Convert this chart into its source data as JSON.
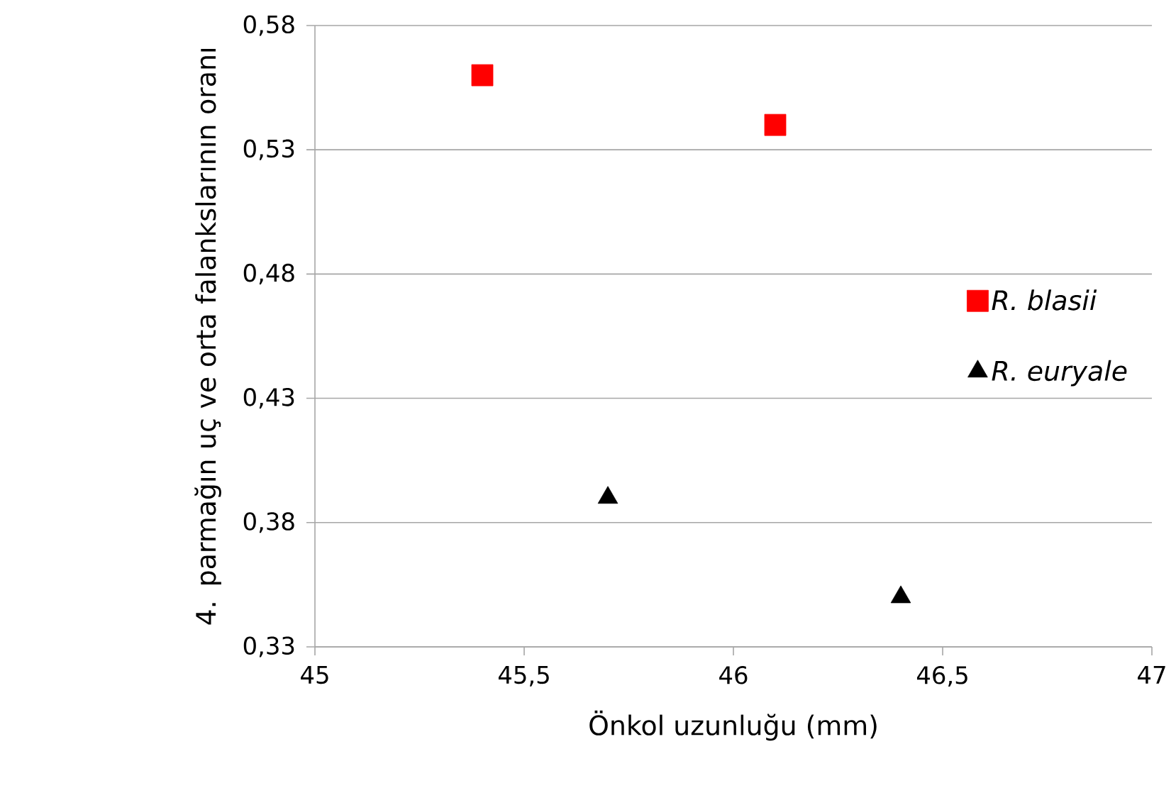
{
  "chart_data": {
    "type": "scatter",
    "xlabel": "Önkol uzunluğu (mm)",
    "ylabel": "4. parmağın uç ve orta falankslarının oranı",
    "series": [
      {
        "name": "R. blasii",
        "color": "#ff0000",
        "marker": "square",
        "x": [
          45.4,
          46.1
        ],
        "values": [
          0.56,
          0.54
        ]
      },
      {
        "name": "R. euryale",
        "color": "#000000",
        "marker": "triangle",
        "x": [
          45.7,
          46.4
        ],
        "values": [
          0.39,
          0.35
        ]
      }
    ],
    "xlim": [
      45,
      47
    ],
    "ylim": [
      0.33,
      0.58
    ],
    "xticks": [
      45,
      {
        "value": 45.5,
        "label": "45,5"
      },
      46,
      {
        "value": 46.5,
        "label": "46,5"
      },
      47
    ],
    "yticks": [
      {
        "value": 0.33,
        "label": "0,33"
      },
      {
        "value": 0.38,
        "label": "0,38"
      },
      {
        "value": 0.43,
        "label": "0,43"
      },
      {
        "value": 0.48,
        "label": "0,48"
      },
      {
        "value": 0.53,
        "label": "0,53"
      },
      {
        "value": 0.58,
        "label": "0,58"
      }
    ],
    "grid": "y",
    "legend": "right"
  }
}
